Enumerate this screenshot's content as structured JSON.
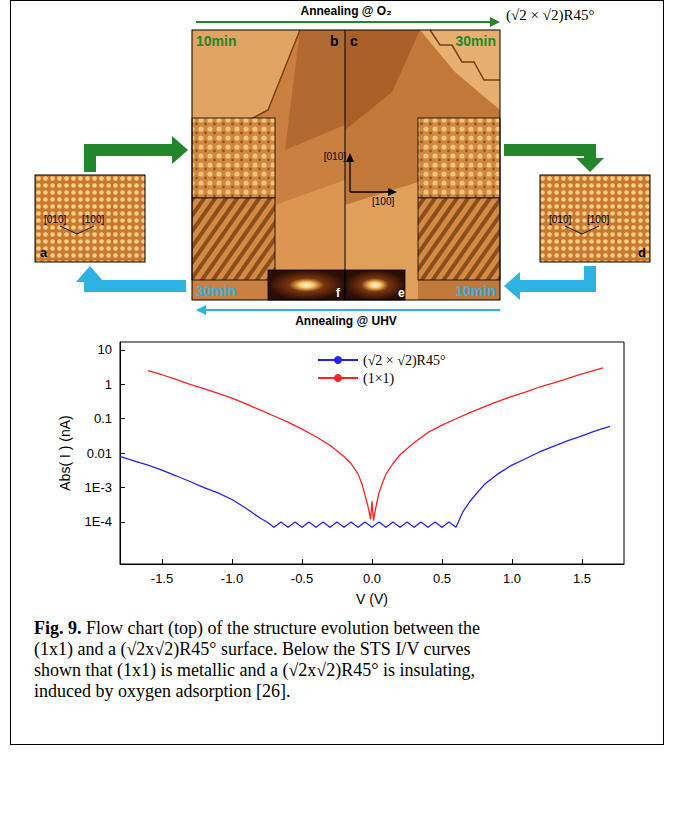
{
  "flow_chart": {
    "top_arrow": "Annealing @ O₂",
    "top_right_label": "(√2 × √2)R45°",
    "bottom_arrow": "Annealing @ UHV",
    "center_axes": [
      "[010]",
      "[100]"
    ],
    "panels": {
      "a": {
        "letter": "a",
        "axes": [
          "[010]",
          "[100]"
        ]
      },
      "b": {
        "letter": "b",
        "o2_time": "10min",
        "uhv_time": "30min"
      },
      "c": {
        "letter": "c",
        "o2_time": "30min",
        "uhv_time": "10min"
      },
      "d": {
        "letter": "d",
        "axes": [
          "[010]",
          "[100]"
        ]
      },
      "e": {
        "letter": "e"
      },
      "f": {
        "letter": "f"
      }
    }
  },
  "chart_data": {
    "type": "line",
    "log": "y",
    "grid": false,
    "legend": "top",
    "x_label": "V (V)",
    "y_label": "Abs( I ) (nA)",
    "xlim": [
      -1.8,
      1.8
    ],
    "xticks": [
      -1.5,
      {
        "value": -1,
        "label": "-1.0"
      },
      -0.5,
      {
        "value": 0,
        "label": "0.0"
      },
      0.5,
      {
        "value": 1,
        "label": "1.0"
      },
      1.5
    ],
    "ylim": [
      6e-06,
      17
    ],
    "yticks": [
      {
        "value": 0.0001,
        "label": "1E-4"
      },
      {
        "value": 0.001,
        "label": "1E-3"
      },
      0.01,
      0.1,
      1,
      10
    ],
    "series": [
      {
        "name": "(√2 × √2)R45°",
        "color": "#2222ff",
        "x": [
          -1.8,
          -1.7,
          -1.6,
          -1.5,
          -1.4,
          -1.3,
          -1.2,
          -1.1,
          -1.0,
          -0.9,
          -0.8,
          -0.75,
          -0.7,
          -0.65,
          -0.6,
          -0.55,
          -0.5,
          -0.45,
          -0.4,
          -0.35,
          -0.3,
          -0.25,
          -0.2,
          -0.15,
          -0.1,
          -0.05,
          0,
          0.05,
          0.1,
          0.15,
          0.2,
          0.25,
          0.3,
          0.35,
          0.4,
          0.45,
          0.5,
          0.55,
          0.6,
          0.65,
          0.7,
          0.8,
          0.9,
          1.0,
          1.1,
          1.2,
          1.3,
          1.4,
          1.5,
          1.6,
          1.7
        ],
        "values": [
          0.008,
          0.006,
          0.0045,
          0.0032,
          0.0022,
          0.0015,
          0.001,
          0.0007,
          0.00045,
          0.00025,
          0.00013,
          0.0001,
          7e-05,
          0.0001,
          7e-05,
          0.0001,
          7e-05,
          0.0001,
          7e-05,
          0.0001,
          7e-05,
          0.0001,
          7e-05,
          0.0001,
          7e-05,
          0.0001,
          7e-05,
          0.0001,
          7e-05,
          0.0001,
          7e-05,
          0.0001,
          7e-05,
          0.0001,
          7e-05,
          0.0001,
          7e-05,
          0.0001,
          7e-05,
          0.0002,
          0.0004,
          0.0012,
          0.0025,
          0.0045,
          0.007,
          0.011,
          0.016,
          0.023,
          0.032,
          0.045,
          0.06
        ]
      },
      {
        "name": "(1×1)",
        "color": "#ff2222",
        "x": [
          -1.6,
          -1.5,
          -1.4,
          -1.3,
          -1.2,
          -1.1,
          -1.0,
          -0.9,
          -0.8,
          -0.7,
          -0.6,
          -0.5,
          -0.4,
          -0.3,
          -0.2,
          -0.15,
          -0.1,
          -0.07,
          -0.05,
          -0.03,
          -0.01,
          0,
          0.01,
          0.03,
          0.05,
          0.07,
          0.1,
          0.15,
          0.2,
          0.3,
          0.4,
          0.5,
          0.6,
          0.7,
          0.8,
          0.9,
          1.0,
          1.1,
          1.2,
          1.3,
          1.4,
          1.5,
          1.65
        ],
        "values": [
          2.5,
          1.9,
          1.4,
          1.0,
          0.75,
          0.55,
          0.4,
          0.27,
          0.18,
          0.12,
          0.08,
          0.05,
          0.03,
          0.017,
          0.008,
          0.005,
          0.0025,
          0.0012,
          0.0006,
          0.0003,
          0.00012,
          0.0004,
          0.00011,
          0.0003,
          0.0007,
          0.0012,
          0.0025,
          0.005,
          0.009,
          0.02,
          0.04,
          0.065,
          0.1,
          0.15,
          0.22,
          0.32,
          0.45,
          0.6,
          0.85,
          1.1,
          1.5,
          2.0,
          3.0
        ]
      }
    ]
  },
  "caption": {
    "label": "Fig. 9.",
    "text": "Flow chart (top) of the structure evolution between the (1x1) and a (√2x√2)R45° surface. Below the STS I/V curves shown that (1x1) is metallic and a (√2x√2)R45° is insulating, induced by oxygen adsorption [26]."
  }
}
